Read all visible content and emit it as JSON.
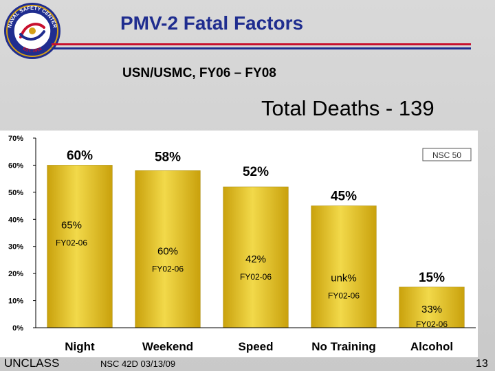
{
  "slide": {
    "title": "PMV-2 Fatal Factors",
    "subtitle": "USN/USMC, FY06 – FY08",
    "total_label": "Total Deaths - 139",
    "footer_left": "UNCLASS",
    "footer_center": "NSC 42D 03/13/09",
    "page_number": "13",
    "logo": {
      "text_top": "NAVAL SAFETY CENTER",
      "text_bottom": "EST. 1951"
    }
  },
  "colors": {
    "title": "#1f2d8f",
    "bar_fill": "#d9b212",
    "bar_highlight": "#f2d94a",
    "rule_red": "#c8102e",
    "rule_blue": "#1f2d8f",
    "plot_bg": "#ffffff"
  },
  "chart_data": {
    "type": "bar",
    "categories": [
      "Night",
      "Weekend",
      "Speed",
      "No Training",
      "Alcohol"
    ],
    "values": [
      60,
      58,
      52,
      45,
      15
    ],
    "value_labels": [
      "60%",
      "58%",
      "52%",
      "45%",
      "15%"
    ],
    "comparison_values": [
      "65%",
      "60%",
      "42%",
      "unk%",
      "33%"
    ],
    "comparison_label": "FY02-06",
    "ylim": [
      0,
      70
    ],
    "yticks": [
      0,
      10,
      20,
      30,
      40,
      50,
      60,
      70
    ],
    "ytick_labels": [
      "0%",
      "10%",
      "20%",
      "30%",
      "40%",
      "50%",
      "60%",
      "70%"
    ],
    "annotation": "NSC 50",
    "legend": "none",
    "grid": false
  }
}
